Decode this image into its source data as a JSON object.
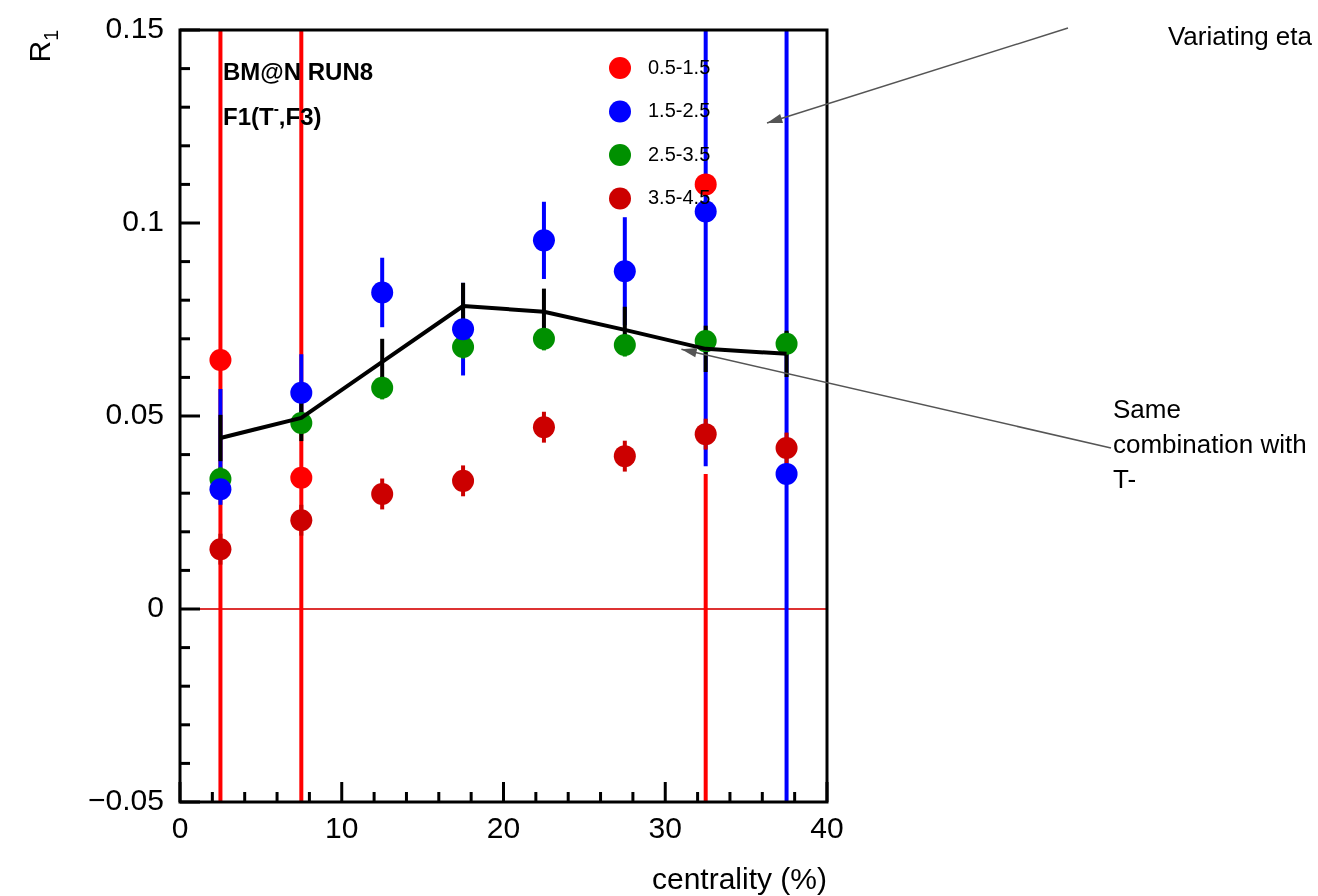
{
  "chart_data": {
    "type": "scatter",
    "title": "BM@N RUN8",
    "subtitle": "F1(T$^{-}$,F3)",
    "xlabel": "centrality (%)",
    "ylabel": "R$_{1}$",
    "x": [
      2.5,
      7.5,
      12.5,
      17.5,
      22.5,
      27.5,
      32.5,
      37.5
    ],
    "series": [
      {
        "name": "0.5-1.5",
        "color": "#ff0000",
        "values": [
          0.0645,
          0.034,
          null,
          null,
          null,
          null,
          0.11,
          null
        ],
        "errors": [
          [
            -0.05,
            0.15
          ],
          [
            -0.05,
            0.15
          ],
          null,
          null,
          null,
          null,
          [
            -0.05,
            0.035
          ],
          null
        ]
      },
      {
        "name": "1.5-2.5",
        "color": "#0000ff",
        "values": [
          0.031,
          0.056,
          0.082,
          0.0725,
          0.0955,
          0.0875,
          0.103,
          0.035
        ],
        "errors": [
          [
            0.027,
            0.057
          ],
          0.01,
          0.009,
          0.012,
          0.01,
          0.014,
          [
            0.037,
            0.15
          ],
          [
            -0.05,
            0.15
          ]
        ]
      },
      {
        "name": "2.5-3.5",
        "color": "#009000",
        "values": [
          0.0337,
          0.0482,
          0.0573,
          0.0679,
          0.07,
          0.0684,
          0.0694,
          0.0687
        ],
        "errors": [
          0.003,
          0.003,
          0.003,
          0.003,
          0.003,
          0.003,
          0.003,
          0.003
        ]
      },
      {
        "name": "3.5-4.5",
        "color": "#cc0000",
        "values": [
          0.0155,
          0.023,
          0.0298,
          0.0332,
          0.0471,
          0.0396,
          0.0453,
          0.0417
        ],
        "errors": [
          0.004,
          0.004,
          0.004,
          0.004,
          0.004,
          0.004,
          0.004,
          0.004
        ]
      },
      {
        "type": "line",
        "color": "#000000",
        "marker": "none",
        "values": [
          0.0443,
          0.0495,
          0.064,
          0.0785,
          0.077,
          0.0723,
          0.0674,
          0.0661
        ],
        "errors": [
          0.006,
          0.006,
          0.006,
          0.006,
          0.006,
          0.006,
          0.006,
          0.006
        ]
      }
    ],
    "xlim": [
      0,
      40
    ],
    "xticks": [
      0,
      {
        "value": 2,
        "label": null
      },
      {
        "value": 4,
        "label": null
      },
      {
        "value": 6,
        "label": null
      },
      {
        "value": 8,
        "label": null
      },
      10,
      {
        "value": 12,
        "label": null
      },
      {
        "value": 14,
        "label": null
      },
      {
        "value": 16,
        "label": null
      },
      {
        "value": 18,
        "label": null
      },
      20,
      {
        "value": 22,
        "label": null
      },
      {
        "value": 24,
        "label": null
      },
      {
        "value": 26,
        "label": null
      },
      {
        "value": 28,
        "label": null
      },
      30,
      {
        "value": 32,
        "label": null
      },
      {
        "value": 34,
        "label": null
      },
      {
        "value": 36,
        "label": null
      },
      {
        "value": 38,
        "label": null
      },
      40
    ],
    "ylim": [
      -0.05,
      0.15
    ],
    "yticks": [
      {
        "value": -0.05,
        "label": "−0.05"
      },
      {
        "value": -0.04,
        "label": null
      },
      {
        "value": -0.03,
        "label": null
      },
      {
        "value": -0.02,
        "label": null
      },
      {
        "value": -0.01,
        "label": null
      },
      0,
      {
        "value": 0.01,
        "label": null
      },
      {
        "value": 0.02,
        "label": null
      },
      {
        "value": 0.03,
        "label": null
      },
      {
        "value": 0.04,
        "label": null
      },
      0.05,
      {
        "value": 0.06,
        "label": null
      },
      {
        "value": 0.07,
        "label": null
      },
      {
        "value": 0.08,
        "label": null
      },
      {
        "value": 0.09,
        "label": null
      },
      0.1,
      {
        "value": 0.11,
        "label": null
      },
      {
        "value": 0.12,
        "label": null
      },
      {
        "value": 0.13,
        "label": null
      },
      {
        "value": 0.14,
        "label": null
      },
      0.15
    ],
    "ref_lines": [
      {
        "axis": "y",
        "value": 0,
        "color": "#dd3333"
      }
    ],
    "annotations": [
      "Variating eta",
      "Same combination with T-"
    ],
    "legend": "top right",
    "marker": "circle"
  }
}
